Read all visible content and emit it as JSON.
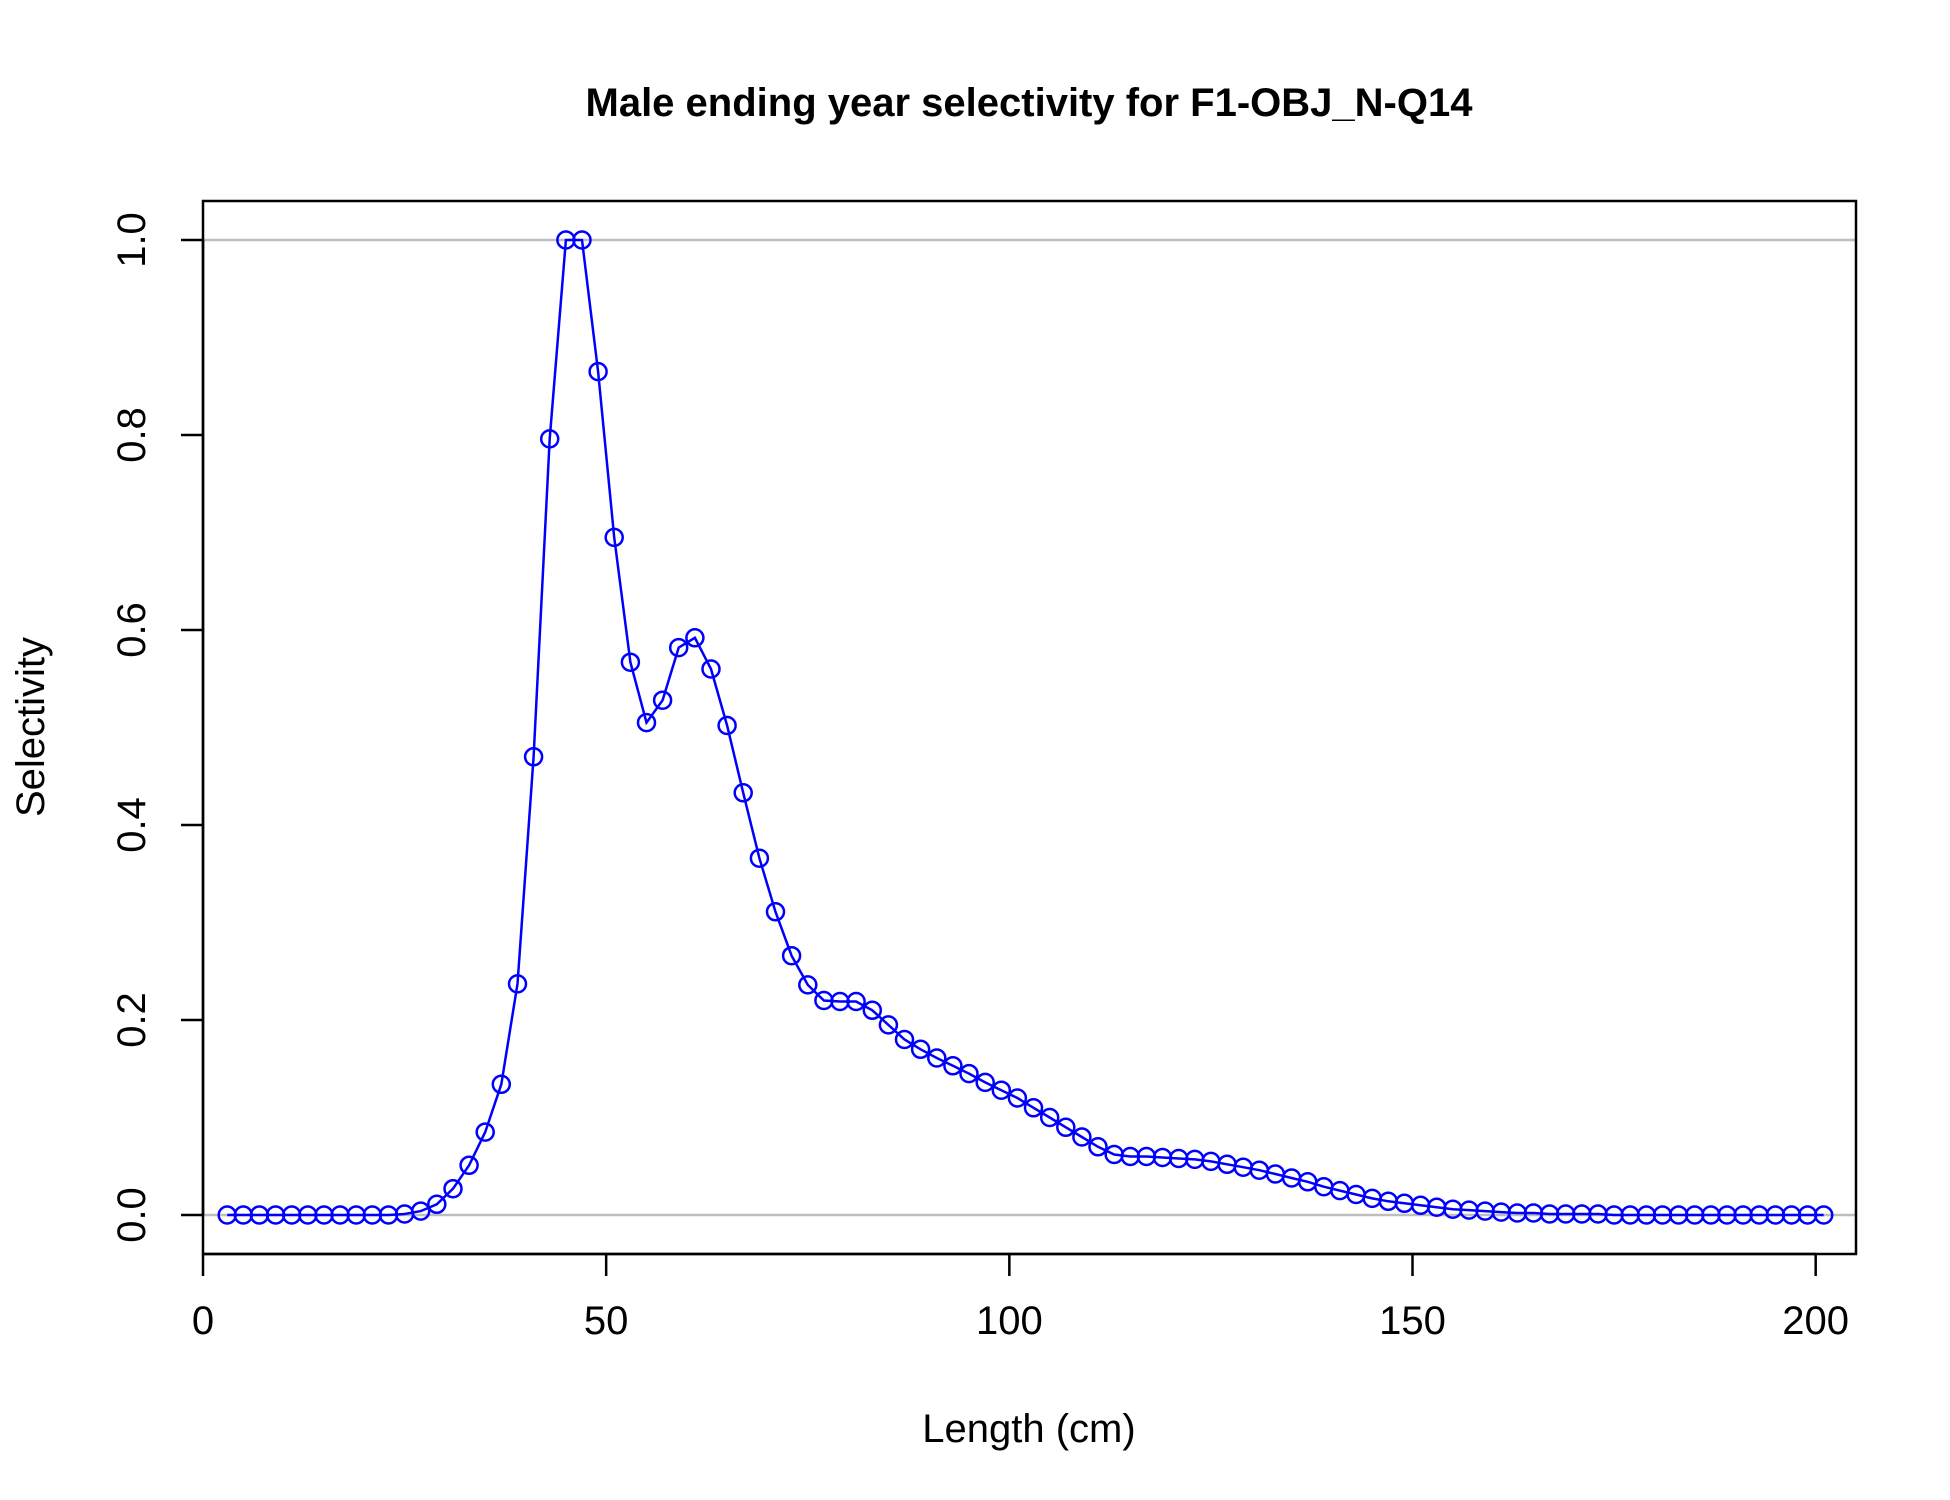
{
  "chart_data": {
    "type": "line",
    "title": "Male ending year selectivity for F1-OBJ_N-Q14",
    "xlabel": "Length (cm)",
    "ylabel": "Selectivity",
    "xlim": [
      0,
      205
    ],
    "ylim": [
      -0.04,
      1.04
    ],
    "xticks": [
      0,
      50,
      100,
      150,
      200
    ],
    "yticks": [
      0.0,
      0.2,
      0.4,
      0.6,
      0.8,
      1.0
    ],
    "xtick_labels": [
      "0",
      "50",
      "100",
      "150",
      "200"
    ],
    "ytick_labels": [
      "0.0",
      "0.2",
      "0.4",
      "0.6",
      "0.8",
      "1.0"
    ],
    "reference_lines": [
      0,
      1
    ],
    "grid": false,
    "colors": {
      "series": "#0000ff",
      "reference": "#bebebe",
      "axis": "#000000"
    },
    "marker": "open-circle",
    "series": [
      {
        "x": [
          3,
          5,
          7,
          9,
          11,
          13,
          15,
          17,
          19,
          21,
          23,
          25,
          27,
          29,
          31,
          33,
          35,
          37,
          39,
          41,
          43,
          45,
          47,
          49,
          51,
          53,
          55,
          57,
          59,
          61,
          63,
          65,
          67,
          69,
          71,
          73,
          75,
          77,
          79,
          81,
          83,
          85,
          87,
          89,
          91,
          93,
          95,
          97,
          99,
          101,
          103,
          105,
          107,
          109,
          111,
          113,
          115,
          117,
          119,
          121,
          123,
          125,
          127,
          129,
          131,
          133,
          135,
          137,
          139,
          141,
          143,
          145,
          147,
          149,
          151,
          153,
          155,
          157,
          159,
          161,
          163,
          165,
          167,
          169,
          171,
          173,
          175,
          177,
          179,
          181,
          183,
          185,
          187,
          189,
          191,
          193,
          195,
          197,
          199,
          201
        ],
        "values": [
          0.0,
          0.0,
          0.0,
          0.0,
          0.0,
          0.0,
          0.0,
          0.0,
          0.0,
          0.0,
          0.0,
          0.001,
          0.004,
          0.011,
          0.027,
          0.051,
          0.085,
          0.134,
          0.237,
          0.47,
          0.796,
          1.0,
          1.0,
          0.865,
          0.695,
          0.567,
          0.505,
          0.528,
          0.582,
          0.592,
          0.56,
          0.502,
          0.433,
          0.366,
          0.311,
          0.266,
          0.236,
          0.22,
          0.219,
          0.219,
          0.21,
          0.195,
          0.18,
          0.17,
          0.161,
          0.153,
          0.145,
          0.136,
          0.128,
          0.12,
          0.11,
          0.1,
          0.09,
          0.08,
          0.07,
          0.062,
          0.06,
          0.06,
          0.059,
          0.058,
          0.057,
          0.055,
          0.052,
          0.049,
          0.046,
          0.042,
          0.038,
          0.034,
          0.029,
          0.025,
          0.021,
          0.017,
          0.014,
          0.012,
          0.01,
          0.008,
          0.006,
          0.005,
          0.004,
          0.003,
          0.002,
          0.002,
          0.001,
          0.001,
          0.001,
          0.001,
          0.0,
          0.0,
          0.0,
          0.0,
          0.0,
          0.0,
          0.0,
          0.0,
          0.0,
          0.0,
          0.0,
          0.0,
          0.0,
          0.0
        ]
      }
    ]
  }
}
